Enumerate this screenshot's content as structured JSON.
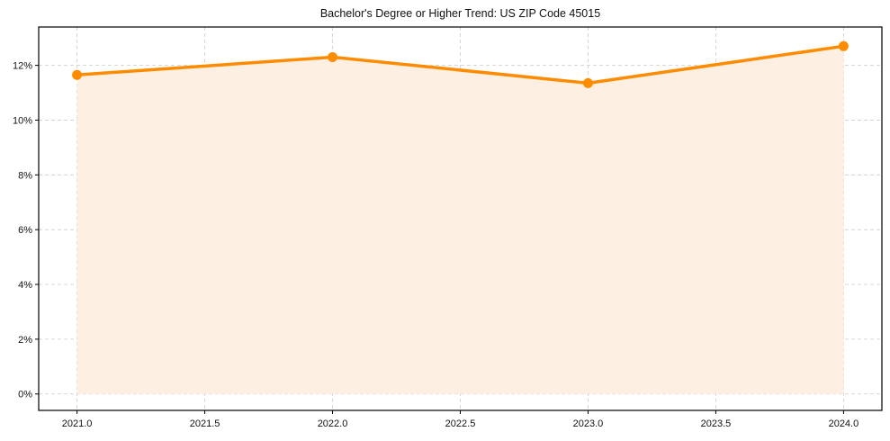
{
  "chart_data": {
    "type": "line",
    "title": "Bachelor's Degree or Higher Trend: US ZIP Code 45015",
    "xlabel": "",
    "ylabel": "",
    "x": [
      2021,
      2022,
      2023,
      2024
    ],
    "series": [
      {
        "name": "Bachelor's Degree or Higher",
        "values": [
          11.65,
          12.3,
          11.35,
          12.7
        ],
        "color": "#ff8c00",
        "fill": "#fdf0e3"
      }
    ],
    "xlim": [
      2020.85,
      2024.15
    ],
    "ylim": [
      -0.6,
      13.4
    ],
    "xticks": [
      2021.0,
      2021.5,
      2022.0,
      2022.5,
      2023.0,
      2023.5,
      2024.0
    ],
    "xtick_labels": [
      "2021.0",
      "2021.5",
      "2022.0",
      "2022.5",
      "2023.0",
      "2023.5",
      "2024.0"
    ],
    "yticks": [
      0,
      2,
      4,
      6,
      8,
      10,
      12
    ],
    "ytick_labels": [
      "0%",
      "2%",
      "4%",
      "6%",
      "8%",
      "10%",
      "12%"
    ],
    "grid": true,
    "legend": null
  }
}
